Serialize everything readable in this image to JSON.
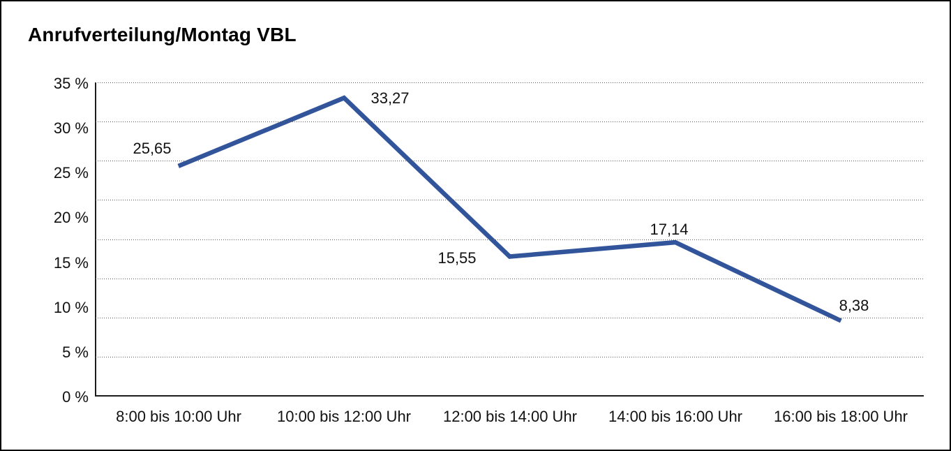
{
  "chart_data": {
    "type": "line",
    "title": "Anrufverteilung/Montag VBL",
    "categories": [
      "8:00 bis 10:00 Uhr",
      "10:00 bis 12:00 Uhr",
      "12:00 bis 14:00 Uhr",
      "14:00 bis 16:00 Uhr",
      "16:00 bis 18:00 Uhr"
    ],
    "values": [
      25.65,
      33.27,
      15.55,
      17.14,
      8.38
    ],
    "point_labels": [
      "25,65",
      "33,27",
      "15,55",
      "17,14",
      "8,38"
    ],
    "y_ticks": [
      "35 %",
      "30 %",
      "25 %",
      "20 %",
      "15 %",
      "10 %",
      "5 %",
      "0 %"
    ],
    "ylim": [
      0,
      35
    ],
    "xlabel": "",
    "ylabel": "",
    "legend": "none",
    "grid": "horizontal-dotted",
    "gridline_count": 8,
    "colors": {
      "line": "#31549B",
      "axis": "#1c1c1c",
      "grid_dots": "#5a5a5a",
      "text": "#111111",
      "frame_border": "#000000",
      "background": "#ffffff"
    }
  }
}
